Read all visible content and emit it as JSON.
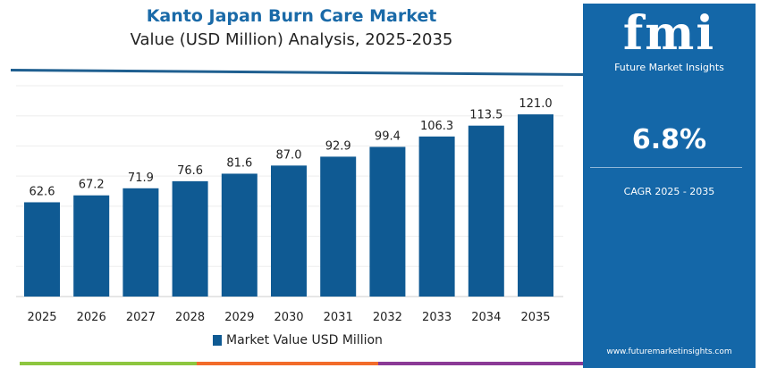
{
  "header": {
    "title": "Kanto Japan Burn Care Market",
    "subtitle": "Value (USD Million) Analysis, 2025-2035"
  },
  "panel": {
    "logo_text": "fmi",
    "logo_subtext": "Future Market Insights",
    "cagr_value": "6.8%",
    "cagr_label": "CAGR 2025 - 2035",
    "url": "www.futuremarketinsights.com"
  },
  "colors": {
    "bar": "#0f5a93",
    "panel": "#1467a8",
    "stripe": [
      "#8dc63f",
      "#f26b2a",
      "#8b3a96"
    ]
  },
  "chart_data": {
    "type": "bar",
    "title": "Kanto Japan Burn Care Market",
    "subtitle": "Value (USD Million) Analysis, 2025-2035",
    "categories": [
      "2025",
      "2026",
      "2027",
      "2028",
      "2029",
      "2030",
      "2031",
      "2032",
      "2033",
      "2034",
      "2035"
    ],
    "series": [
      {
        "name": "Market Value USD Million",
        "values": [
          62.6,
          67.2,
          71.9,
          76.6,
          81.6,
          87.0,
          92.9,
          99.4,
          106.3,
          113.5,
          121.0
        ]
      }
    ],
    "labels": [
      "62.6",
      "67.2",
      "71.9",
      "76.6",
      "81.6",
      "87.0",
      "92.9",
      "99.4",
      "106.3",
      "113.5",
      "121.0"
    ],
    "ylim": [
      0,
      140
    ],
    "grid": true,
    "legend": "bottom"
  }
}
